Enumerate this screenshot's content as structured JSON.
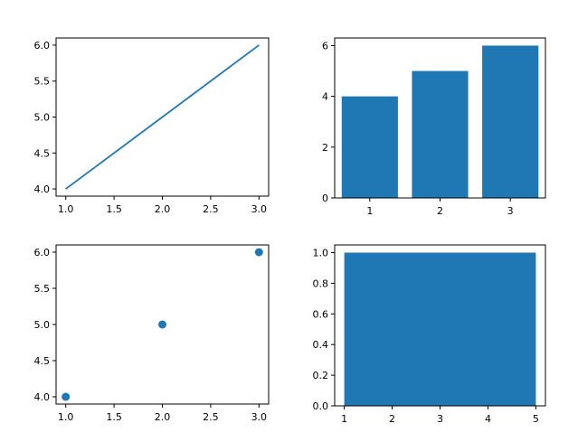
{
  "chart_data": [
    {
      "type": "line",
      "x": [
        1,
        2,
        3
      ],
      "series": [
        {
          "values": [
            4,
            5,
            6
          ]
        }
      ],
      "xlim": [
        0.9,
        3.1
      ],
      "ylim": [
        3.9,
        6.1
      ],
      "xticks": [
        "1.0",
        "1.5",
        "2.0",
        "2.5",
        "3.0"
      ],
      "yticks": [
        "4.0",
        "4.5",
        "5.0",
        "5.5",
        "6.0"
      ],
      "grid": false,
      "color": "#1f77b4"
    },
    {
      "type": "bar",
      "categories": [
        "1",
        "2",
        "3"
      ],
      "values": [
        4,
        5,
        6
      ],
      "ylim": [
        0,
        6.3
      ],
      "xticks": [
        "1",
        "2",
        "3"
      ],
      "yticks": [
        "0",
        "2",
        "4",
        "6"
      ],
      "grid": false,
      "color": "#1f77b4"
    },
    {
      "type": "scatter",
      "x": [
        1,
        2,
        3
      ],
      "series": [
        {
          "values": [
            4,
            5,
            6
          ]
        }
      ],
      "xlim": [
        0.9,
        3.1
      ],
      "ylim": [
        3.9,
        6.1
      ],
      "xticks": [
        "1.0",
        "1.5",
        "2.0",
        "2.5",
        "3.0"
      ],
      "yticks": [
        "4.0",
        "4.5",
        "5.0",
        "5.5",
        "6.0"
      ],
      "grid": false,
      "color": "#1f77b4"
    },
    {
      "type": "bar",
      "categories": [
        ""
      ],
      "values": [
        1.0
      ],
      "bar_x_range": [
        1,
        5
      ],
      "xlim": [
        0.8,
        5.2
      ],
      "ylim": [
        0,
        1.05
      ],
      "xticks": [
        "1",
        "2",
        "3",
        "4",
        "5"
      ],
      "yticks": [
        "0.0",
        "0.2",
        "0.4",
        "0.6",
        "0.8",
        "1.0"
      ],
      "grid": false,
      "color": "#1f77b4"
    }
  ]
}
